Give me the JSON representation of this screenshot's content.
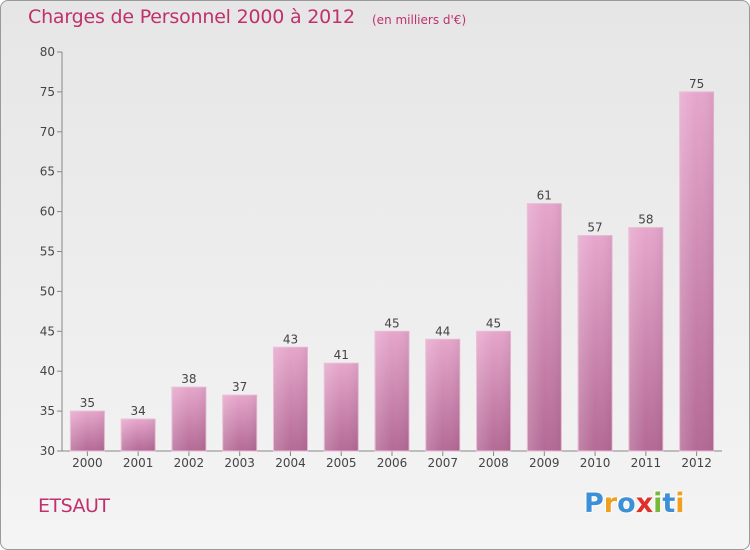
{
  "chart_data": {
    "type": "bar",
    "title": "Charges de Personnel 2000 à 2012",
    "subtitle": "(en milliers d'€)",
    "categories": [
      "2000",
      "2001",
      "2002",
      "2003",
      "2004",
      "2005",
      "2006",
      "2007",
      "2008",
      "2009",
      "2010",
      "2011",
      "2012"
    ],
    "values": [
      35,
      34,
      38,
      37,
      43,
      41,
      45,
      44,
      45,
      61,
      57,
      58,
      75
    ],
    "ylim": [
      30,
      80
    ],
    "yticks": [
      30,
      35,
      40,
      45,
      50,
      55,
      60,
      65,
      70,
      75,
      80
    ],
    "xlabel": "",
    "ylabel": "",
    "grid": false,
    "bar_color": "#d9679f"
  },
  "footer": {
    "town": "ETSAUT",
    "logo": [
      "P",
      "r",
      "o",
      "x",
      "i",
      "t",
      "i"
    ],
    "logo_colors": [
      "#3d8fd6",
      "#f0a020",
      "#3d8fd6",
      "#e0302a",
      "#78b83a",
      "#3d8fd6",
      "#f0a020"
    ]
  }
}
